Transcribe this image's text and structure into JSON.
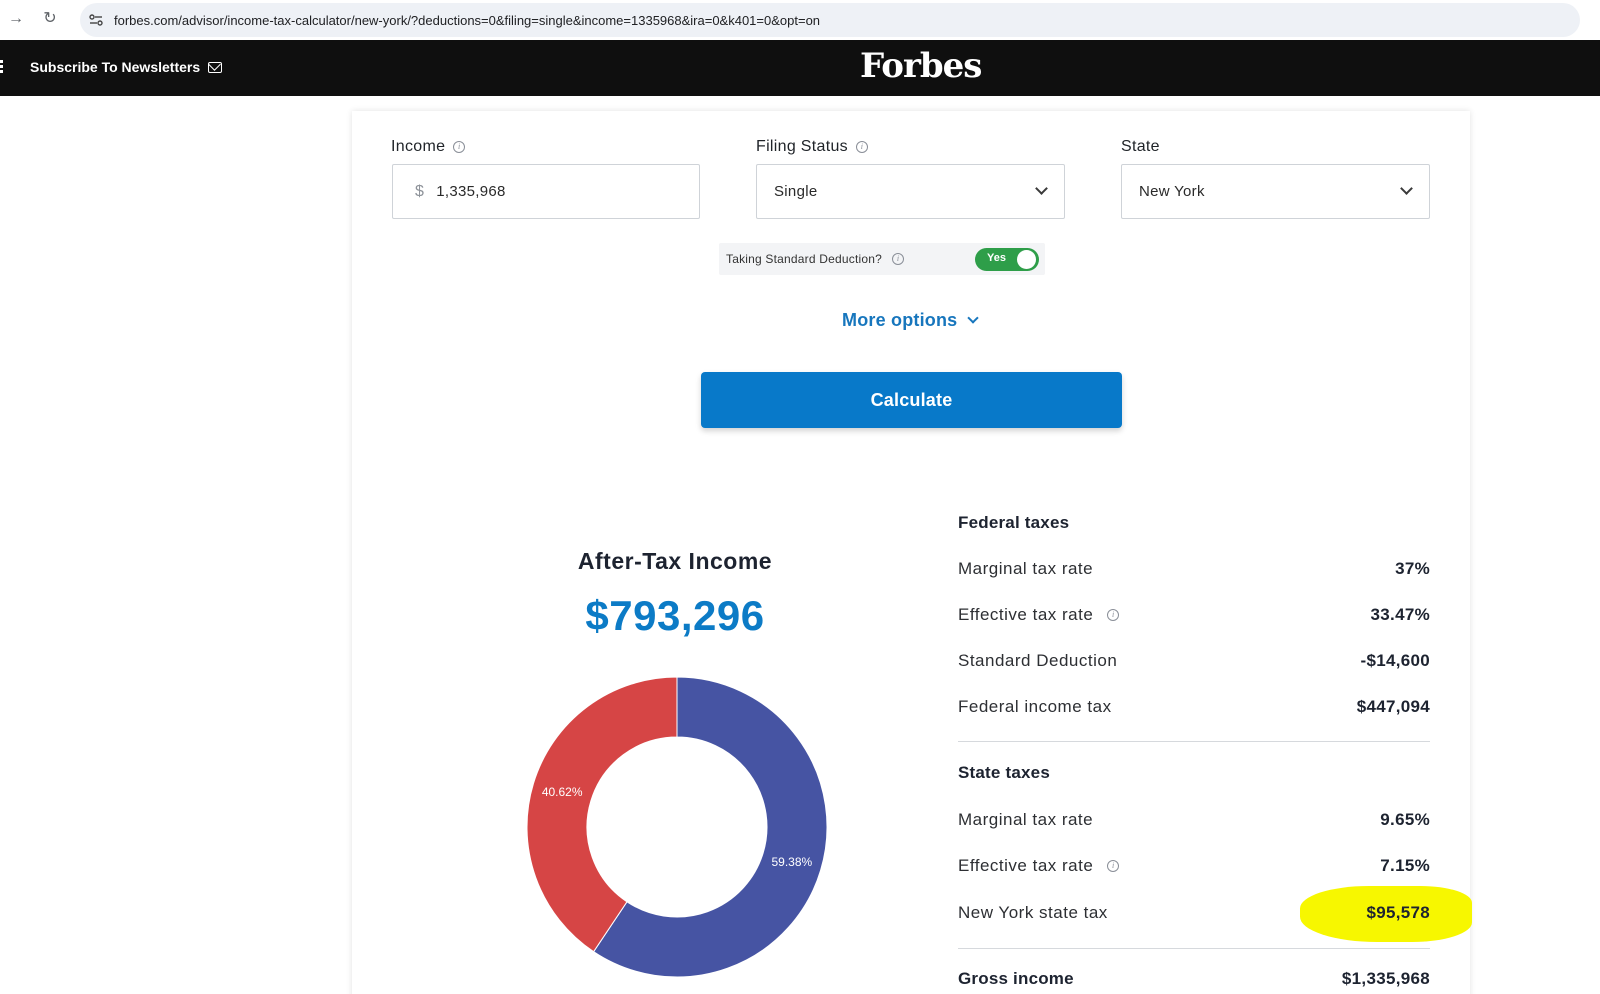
{
  "browser": {
    "url": "forbes.com/advisor/income-tax-calculator/new-york/?deductions=0&filing=single&income=1335968&ira=0&k401=0&opt=on"
  },
  "header": {
    "subscribe_label": "Subscribe To Newsletters",
    "logo_text": "Forbes"
  },
  "form": {
    "income_label": "Income",
    "income_currency": "$",
    "income_value": "1,335,968",
    "filing_label": "Filing Status",
    "filing_value": "Single",
    "state_label": "State",
    "state_value": "New York",
    "deduction_label": "Taking Standard Deduction?",
    "deduction_toggle": "Yes",
    "more_options": "More options",
    "calculate": "Calculate"
  },
  "summary": {
    "title": "After-Tax Income",
    "amount": "$793,296"
  },
  "chart_data": {
    "type": "pie",
    "categories": [
      "59.38%",
      "40.62%"
    ],
    "values": [
      59.38,
      40.62
    ],
    "colors": [
      "#4654a3",
      "#d64545"
    ],
    "title": "",
    "xlabel": "",
    "ylabel": ""
  },
  "federal": {
    "title": "Federal taxes",
    "rows": [
      {
        "label": "Marginal tax rate",
        "value": "37%"
      },
      {
        "label": "Effective tax rate",
        "value": "33.47%"
      },
      {
        "label": "Standard Deduction",
        "value": "-$14,600"
      },
      {
        "label": "Federal income tax",
        "value": "$447,094"
      }
    ]
  },
  "state": {
    "title": "State taxes",
    "rows": [
      {
        "label": "Marginal tax rate",
        "value": "9.65%"
      },
      {
        "label": "Effective tax rate",
        "value": "7.15%"
      },
      {
        "label": "New York state tax",
        "value": "$95,578"
      }
    ]
  },
  "gross": {
    "label": "Gross income",
    "value": "$1,335,968"
  },
  "colors": {
    "accent_blue": "#0879c9",
    "toggle_green": "#2e9e49",
    "highlight_yellow": "#f7f700"
  }
}
